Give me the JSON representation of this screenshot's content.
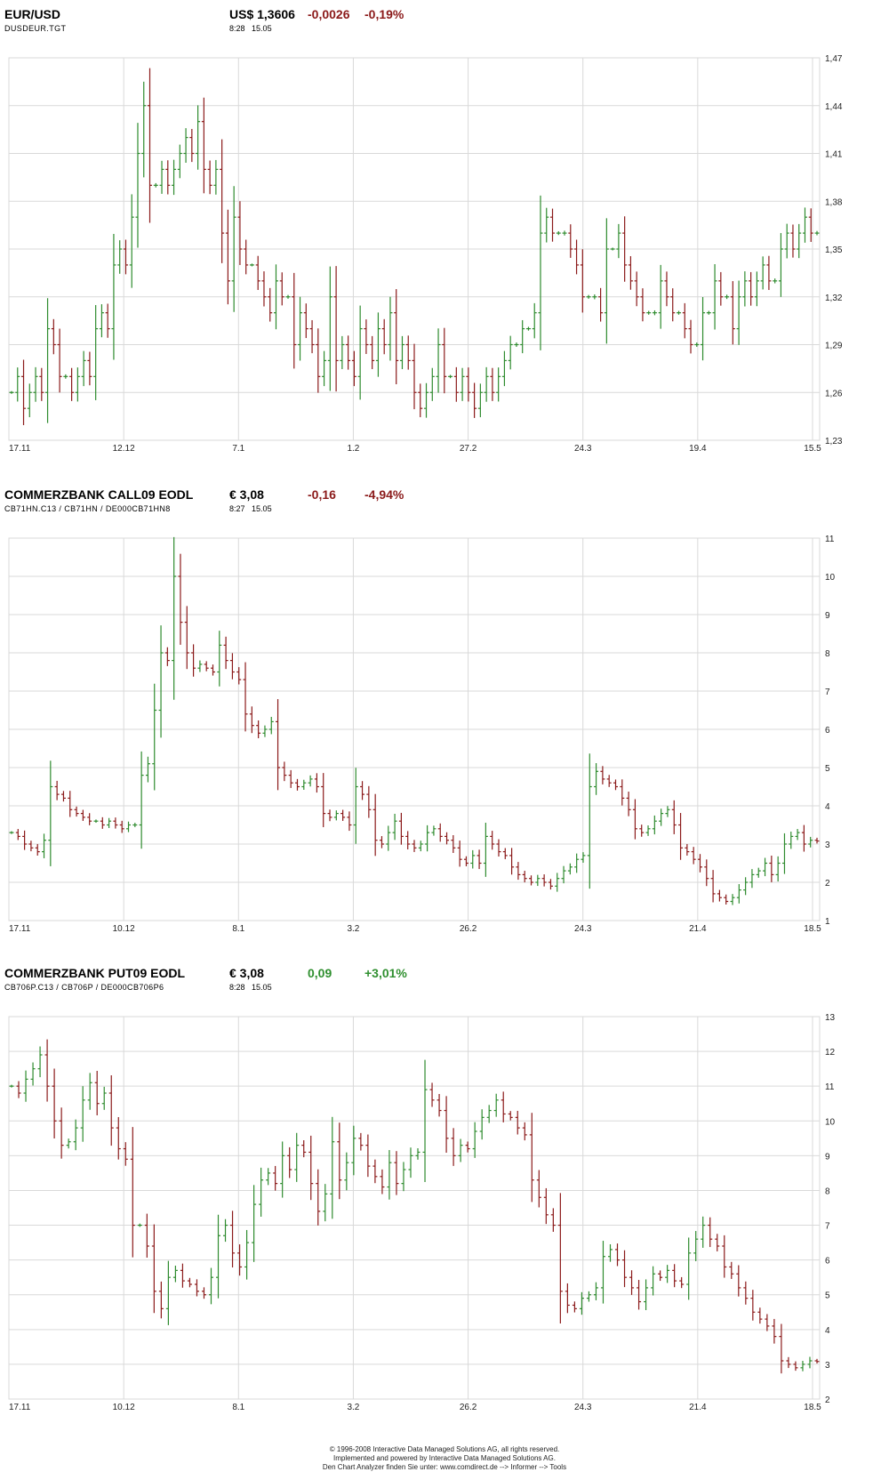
{
  "panels": [
    {
      "name": "EUR/USD",
      "price": "US$ 1,3606",
      "change_abs": "-0,0026",
      "change_pct": "-0,19%",
      "change_sign": "neg",
      "codes": "DUSDEUR.TGT",
      "time": "8:28",
      "date": "15.05"
    },
    {
      "name": "COMMERZBANK CALL09 EODL",
      "price": "€ 3,08",
      "change_abs": "-0,16",
      "change_pct": "-4,94%",
      "change_sign": "neg",
      "codes": "CB71HN.C13  /  CB71HN  /  DE000CB71HN8",
      "time": "8:27",
      "date": "15.05"
    },
    {
      "name": "COMMERZBANK PUT09 EODL",
      "price": "€ 3,08",
      "change_abs": "0,09",
      "change_pct": "+3,01%",
      "change_sign": "pos",
      "codes": "CB706P.C13  /  CB706P  /  DE000CB706P6",
      "time": "8:28",
      "date": "15.05"
    }
  ],
  "colors": {
    "up": "#2e8b2e",
    "down": "#8b1a1a",
    "grid": "#d9d9d9",
    "neg_text": "#8b1a1a",
    "pos_text": "#2f8f2f"
  },
  "chart_data": [
    {
      "type": "ohlc",
      "title": "EUR/USD",
      "ylim": [
        1.23,
        1.47
      ],
      "y_ticks": [
        "1,23",
        "1,26",
        "1,29",
        "1,32",
        "1,35",
        "1,38",
        "1,41",
        "1,44",
        "1,47"
      ],
      "x_ticks": [
        "17.11",
        "12.12",
        "7.1",
        "1.2",
        "27.2",
        "24.3",
        "19.4",
        "15.5"
      ],
      "grid": true,
      "closes": [
        1.26,
        1.27,
        1.25,
        1.26,
        1.27,
        1.26,
        1.3,
        1.29,
        1.27,
        1.27,
        1.26,
        1.27,
        1.28,
        1.27,
        1.3,
        1.31,
        1.3,
        1.34,
        1.35,
        1.34,
        1.37,
        1.41,
        1.44,
        1.39,
        1.39,
        1.4,
        1.39,
        1.4,
        1.41,
        1.42,
        1.41,
        1.43,
        1.4,
        1.39,
        1.4,
        1.36,
        1.33,
        1.37,
        1.35,
        1.34,
        1.34,
        1.33,
        1.32,
        1.31,
        1.33,
        1.32,
        1.32,
        1.29,
        1.31,
        1.3,
        1.29,
        1.27,
        1.28,
        1.32,
        1.28,
        1.29,
        1.28,
        1.27,
        1.3,
        1.29,
        1.28,
        1.3,
        1.29,
        1.31,
        1.28,
        1.29,
        1.28,
        1.26,
        1.25,
        1.26,
        1.27,
        1.29,
        1.27,
        1.27,
        1.26,
        1.27,
        1.26,
        1.25,
        1.26,
        1.27,
        1.26,
        1.27,
        1.28,
        1.29,
        1.29,
        1.3,
        1.3,
        1.31,
        1.36,
        1.37,
        1.36,
        1.36,
        1.36,
        1.35,
        1.34,
        1.32,
        1.32,
        1.32,
        1.31,
        1.35,
        1.35,
        1.36,
        1.34,
        1.33,
        1.32,
        1.31,
        1.31,
        1.31,
        1.33,
        1.32,
        1.31,
        1.31,
        1.3,
        1.29,
        1.29,
        1.31,
        1.31,
        1.33,
        1.32,
        1.32,
        1.3,
        1.32,
        1.33,
        1.32,
        1.33,
        1.34,
        1.33,
        1.33,
        1.35,
        1.36,
        1.35,
        1.36,
        1.37,
        1.36,
        1.36
      ],
      "last": 1.3606
    },
    {
      "type": "ohlc",
      "title": "COMMERZBANK CALL09 EODL",
      "ylim": [
        1,
        11
      ],
      "y_ticks": [
        "1",
        "2",
        "3",
        "4",
        "5",
        "6",
        "7",
        "8",
        "9",
        "10",
        "11"
      ],
      "x_ticks": [
        "17.11",
        "10.12",
        "8.1",
        "3.2",
        "26.2",
        "24.3",
        "21.4",
        "18.5"
      ],
      "grid": true,
      "closes": [
        3.3,
        3.2,
        3.0,
        2.9,
        2.8,
        3.1,
        4.5,
        4.3,
        4.2,
        3.9,
        3.8,
        3.7,
        3.6,
        3.6,
        3.5,
        3.6,
        3.5,
        3.4,
        3.5,
        3.5,
        4.8,
        5.1,
        6.5,
        8.0,
        7.8,
        10.0,
        8.8,
        8.0,
        7.6,
        7.7,
        7.6,
        7.5,
        8.2,
        7.8,
        7.5,
        7.3,
        6.4,
        6.1,
        5.9,
        6.0,
        6.2,
        5.0,
        4.8,
        4.6,
        4.5,
        4.6,
        4.7,
        4.5,
        3.8,
        3.7,
        3.8,
        3.7,
        3.5,
        4.5,
        4.3,
        3.9,
        3.1,
        3.0,
        3.3,
        3.6,
        3.2,
        3.0,
        2.9,
        3.0,
        3.3,
        3.4,
        3.2,
        3.1,
        2.9,
        2.6,
        2.5,
        2.7,
        2.5,
        3.2,
        3.0,
        2.8,
        2.7,
        2.4,
        2.2,
        2.1,
        2.0,
        2.1,
        2.0,
        1.9,
        2.1,
        2.3,
        2.4,
        2.6,
        2.7,
        4.5,
        4.9,
        4.7,
        4.6,
        4.5,
        4.2,
        3.9,
        3.4,
        3.3,
        3.4,
        3.6,
        3.8,
        3.9,
        3.5,
        2.9,
        2.8,
        2.6,
        2.4,
        2.1,
        1.7,
        1.6,
        1.5,
        1.6,
        1.8,
        2.0,
        2.2,
        2.3,
        2.5,
        2.2,
        2.5,
        3.0,
        3.2,
        3.3,
        3.0,
        3.1,
        3.08
      ],
      "last": 3.08
    },
    {
      "type": "ohlc",
      "title": "COMMERZBANK PUT09 EODL",
      "ylim": [
        2,
        13
      ],
      "y_ticks": [
        "2",
        "3",
        "4",
        "5",
        "6",
        "7",
        "8",
        "9",
        "10",
        "11",
        "12",
        "13"
      ],
      "x_ticks": [
        "17.11",
        "10.12",
        "8.1",
        "3.2",
        "26.2",
        "24.3",
        "21.4",
        "18.5"
      ],
      "grid": true,
      "closes": [
        11.0,
        10.8,
        11.2,
        11.5,
        11.9,
        11.0,
        10.0,
        9.3,
        9.4,
        9.8,
        10.6,
        11.1,
        10.5,
        10.8,
        9.8,
        9.2,
        8.9,
        7.0,
        7.0,
        6.4,
        5.1,
        4.6,
        5.5,
        5.7,
        5.4,
        5.3,
        5.1,
        5.0,
        5.5,
        6.7,
        7.0,
        6.2,
        5.8,
        6.5,
        7.6,
        8.3,
        8.5,
        8.2,
        9.0,
        8.6,
        9.3,
        9.1,
        8.2,
        7.4,
        7.9,
        9.4,
        8.3,
        8.8,
        9.5,
        9.3,
        8.7,
        8.4,
        8.1,
        8.8,
        8.2,
        8.6,
        9.0,
        9.1,
        10.9,
        10.6,
        10.3,
        9.5,
        9.0,
        9.3,
        9.2,
        9.7,
        10.1,
        10.3,
        10.6,
        10.2,
        10.1,
        9.8,
        9.6,
        8.3,
        7.8,
        7.3,
        7.0,
        5.1,
        4.7,
        4.6,
        4.9,
        5.0,
        5.2,
        6.1,
        6.3,
        6.0,
        5.5,
        5.2,
        4.8,
        5.2,
        5.6,
        5.5,
        5.7,
        5.4,
        5.3,
        6.2,
        6.6,
        7.0,
        6.6,
        6.4,
        5.8,
        5.6,
        5.2,
        4.9,
        4.5,
        4.3,
        4.1,
        3.8,
        3.1,
        3.0,
        2.9,
        3.0,
        3.1,
        3.08
      ],
      "last": 3.08
    }
  ],
  "footer": {
    "line1": "© 1996-2008 Interactive Data Managed Solutions AG, all rights reserved.",
    "line2": "Implemented and powered by Interactive Data Managed Solutions AG.",
    "line3": "Den Chart Analyzer finden Sie unter: www.comdirect.de --> Informer --> Tools"
  }
}
